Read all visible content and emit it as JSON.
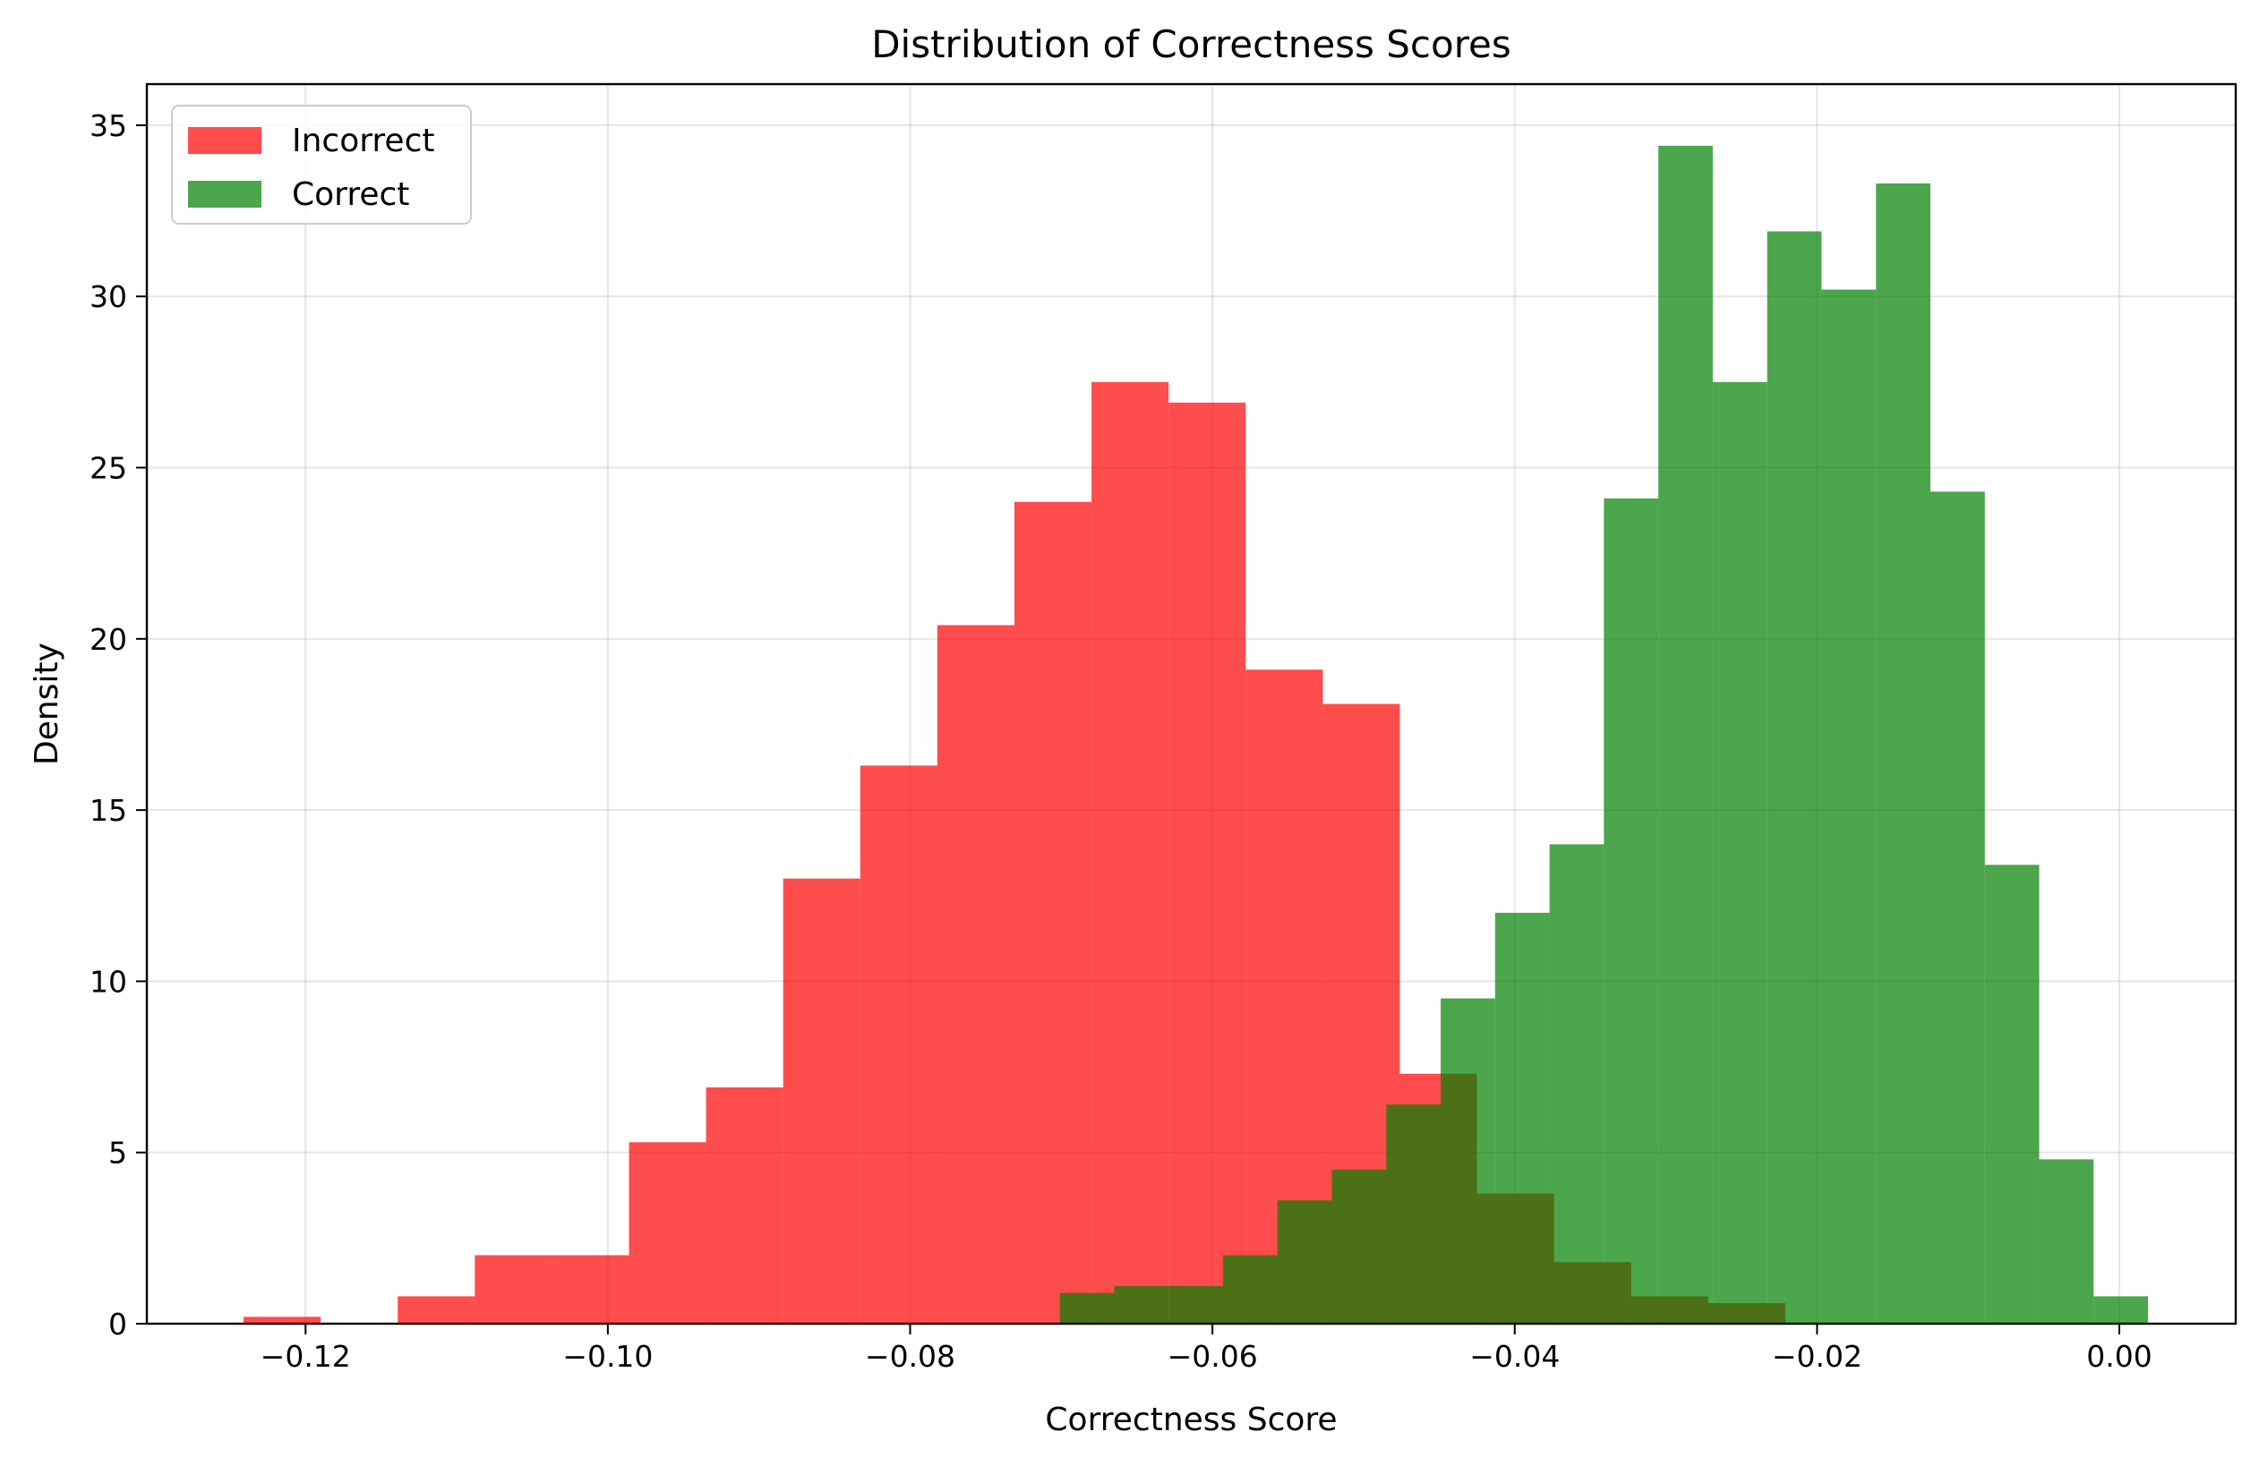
{
  "chart_data": {
    "type": "bar",
    "subtype": "overlapping-histogram",
    "title": "Distribution of Correctness Scores",
    "xlabel": "Correctness Score",
    "ylabel": "Density",
    "xlim": [
      -0.1305,
      0.0077
    ],
    "ylim": [
      0,
      36.2
    ],
    "grid": true,
    "legend_position": "upper-left",
    "x_ticks": [
      -0.12,
      -0.1,
      -0.08,
      -0.06,
      -0.04,
      -0.02,
      0.0
    ],
    "x_tick_labels": [
      "−0.12",
      "−0.10",
      "−0.08",
      "−0.06",
      "−0.04",
      "−0.02",
      "0.00"
    ],
    "y_ticks": [
      0,
      5,
      10,
      15,
      20,
      25,
      30,
      35
    ],
    "y_tick_labels": [
      "0",
      "5",
      "10",
      "15",
      "20",
      "25",
      "30",
      "35"
    ],
    "series": [
      {
        "name": "Incorrect",
        "color": "#ff0000",
        "alpha": 0.7,
        "bin_edges": [
          -0.1241,
          -0.119,
          -0.1139,
          -0.1088,
          -0.1037,
          -0.0986,
          -0.0935,
          -0.0884,
          -0.0833,
          -0.0782,
          -0.0731,
          -0.068,
          -0.0629,
          -0.0578,
          -0.0527,
          -0.0476,
          -0.0425,
          -0.0374,
          -0.0323,
          -0.0272,
          -0.0221
        ],
        "values": [
          0.2,
          0,
          0.8,
          2.0,
          2.0,
          5.3,
          6.9,
          13.0,
          16.3,
          20.4,
          24.0,
          27.5,
          26.9,
          19.1,
          18.1,
          7.3,
          3.8,
          1.8,
          0.8,
          0.6
        ]
      },
      {
        "name": "Correct",
        "color": "#008000",
        "alpha": 0.7,
        "bin_edges": [
          -0.0701,
          -0.0665,
          -0.0629,
          -0.0593,
          -0.0557,
          -0.0521,
          -0.0485,
          -0.0449,
          -0.0413,
          -0.0377,
          -0.0341,
          -0.0305,
          -0.0269,
          -0.0233,
          -0.0197,
          -0.0161,
          -0.0125,
          -0.0089,
          -0.0053,
          -0.0017,
          0.0019
        ],
        "values": [
          0.9,
          1.1,
          1.1,
          2.0,
          3.6,
          4.5,
          6.4,
          9.5,
          12.0,
          14.0,
          24.1,
          34.4,
          27.5,
          31.9,
          30.2,
          33.3,
          24.3,
          13.4,
          4.8,
          0.8
        ]
      }
    ]
  }
}
